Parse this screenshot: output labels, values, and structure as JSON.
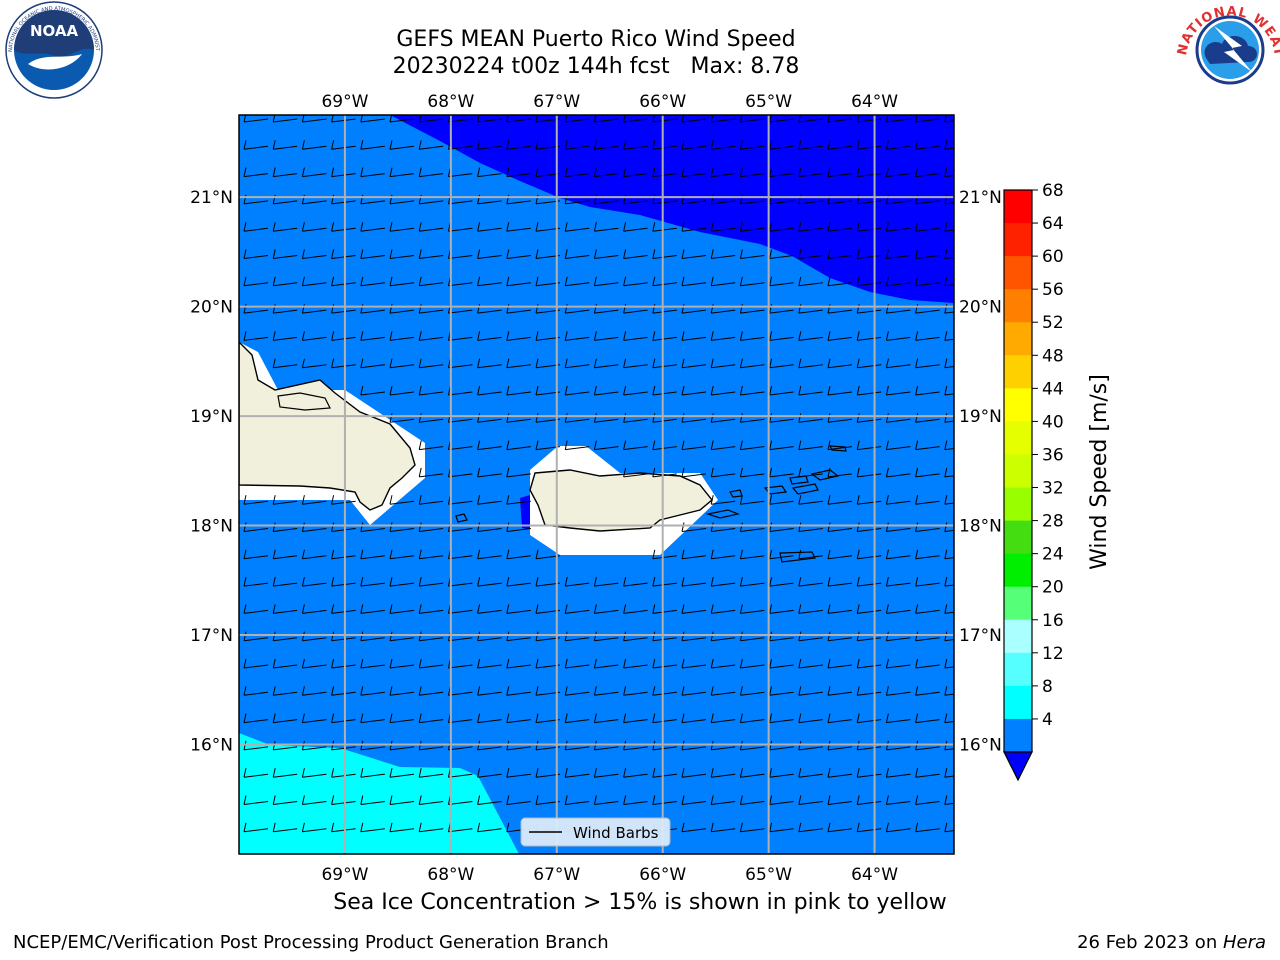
{
  "title": {
    "line1": "GEFS MEAN Puerto Rico Wind Speed",
    "line2": "20230224 t00z 144h fcst   Max: 8.78"
  },
  "logos": {
    "left": {
      "icon": "noaa-logo",
      "text": "NOAA",
      "ring_text": "NATIONAL OCEANIC AND ATMOSPHERIC ADMINISTRATION · U.S. DEPARTMENT OF COMMERCE"
    },
    "right": {
      "icon": "nws-logo",
      "ring_text": "NATIONAL WEATHER SERVICE"
    }
  },
  "map": {
    "lon_range": [
      -70.0,
      -63.25
    ],
    "lat_range": [
      15.0,
      21.75
    ],
    "lon_ticks": [
      {
        "value": -69,
        "label": "69°W"
      },
      {
        "value": -68,
        "label": "68°W"
      },
      {
        "value": -67,
        "label": "67°W"
      },
      {
        "value": -66,
        "label": "66°W"
      },
      {
        "value": -65,
        "label": "65°W"
      },
      {
        "value": -64,
        "label": "64°W"
      }
    ],
    "lat_ticks": [
      {
        "value": 21,
        "label": "21°N"
      },
      {
        "value": 20,
        "label": "20°N"
      },
      {
        "value": 19,
        "label": "19°N"
      },
      {
        "value": 18,
        "label": "18°N"
      },
      {
        "value": 17,
        "label": "17°N"
      },
      {
        "value": 16,
        "label": "16°N"
      }
    ],
    "grid": true,
    "legend": {
      "label": "Wind Barbs",
      "placement": "bottom-center"
    },
    "field_colors": {
      "below_4": "#0000ff",
      "4_to_8": "#0080ff",
      "8_to_12": "#00ffff",
      "land_mask": "#ffffff",
      "land": "#f0f0dc"
    }
  },
  "colorbar": {
    "label": "Wind Speed [m/s]",
    "ticks": [
      "68",
      "64",
      "60",
      "56",
      "52",
      "48",
      "44",
      "40",
      "36",
      "32",
      "28",
      "24",
      "20",
      "16",
      "12",
      "8",
      "4"
    ],
    "colors": [
      "#ff0000",
      "#ff2200",
      "#ff5500",
      "#ff8000",
      "#ffaa00",
      "#ffd000",
      "#ffff00",
      "#e6ff00",
      "#ccff00",
      "#99ff00",
      "#44dd11",
      "#00ee00",
      "#55ff77",
      "#aaffff",
      "#55ffff",
      "#00ffff",
      "#0080ff"
    ],
    "extend_color": "#0000ff"
  },
  "caption": "Sea Ice Concentration > 15% is shown in pink to yellow",
  "footer": {
    "left": "NCEP/EMC/Verification Post Processing Product Generation Branch",
    "right_prefix": "26 Feb 2023 on ",
    "right_machine": "Hera"
  }
}
